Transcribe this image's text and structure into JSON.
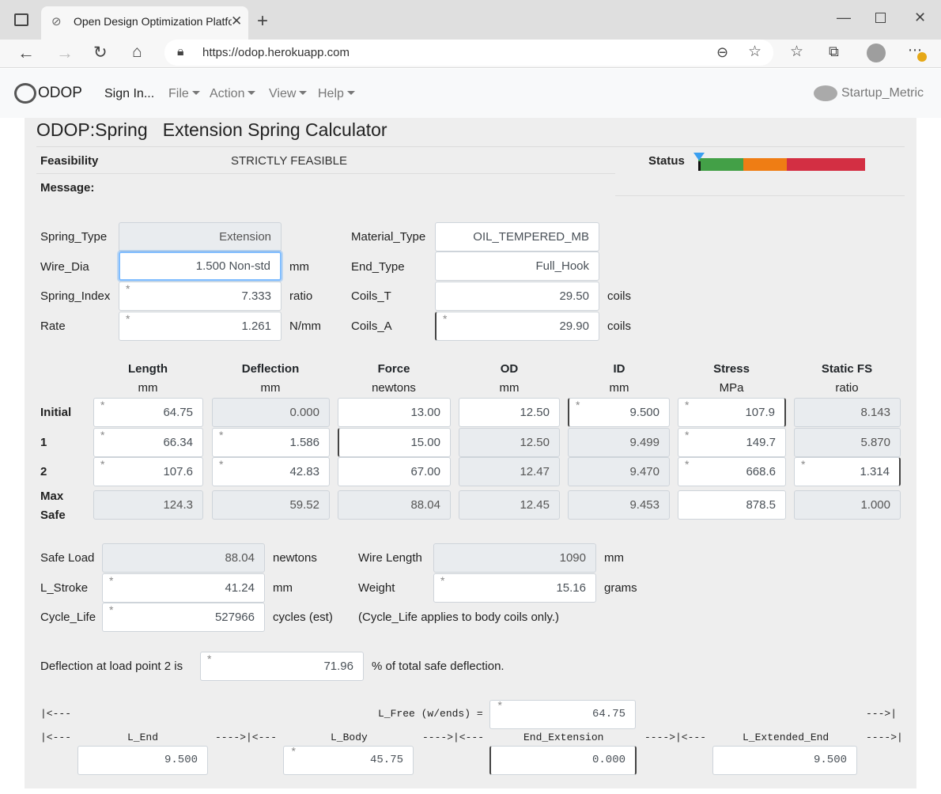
{
  "browser": {
    "tab_title": "Open Design Optimization Platfo",
    "url": "https://odop.herokuapp.com"
  },
  "navbar": {
    "brand": "ODOP",
    "sign_in": "Sign In...",
    "menus": [
      "File",
      "Action",
      "View",
      "Help"
    ],
    "design_name": "Startup_Metric"
  },
  "page": {
    "title": "ODOP:Spring   Extension Spring Calculator",
    "feasibility_label": "Feasibility",
    "feasibility_value": "STRICTLY FEASIBLE",
    "status_label": "Status",
    "message_label": "Message:",
    "status_colors": [
      "#43a047",
      "#ef7d14",
      "#d32f43"
    ]
  },
  "top_fields": {
    "left": [
      {
        "label": "Spring_Type",
        "value": "Extension",
        "unit": ""
      },
      {
        "label": "Wire_Dia",
        "value": "1.500 Non-std",
        "unit": "mm"
      },
      {
        "label": "Spring_Index",
        "value": "7.333",
        "unit": "ratio"
      },
      {
        "label": "Rate",
        "value": "1.261",
        "unit": "N/mm"
      }
    ],
    "right": [
      {
        "label": "Material_Type",
        "value": "OIL_TEMPERED_MB",
        "unit": ""
      },
      {
        "label": "End_Type",
        "value": "Full_Hook",
        "unit": ""
      },
      {
        "label": "Coils_T",
        "value": "29.50",
        "unit": "coils"
      },
      {
        "label": "Coils_A",
        "value": "29.90",
        "unit": "coils"
      }
    ]
  },
  "table": {
    "columns": [
      {
        "name": "Length",
        "unit": "mm"
      },
      {
        "name": "Deflection",
        "unit": "mm"
      },
      {
        "name": "Force",
        "unit": "newtons"
      },
      {
        "name": "OD",
        "unit": "mm"
      },
      {
        "name": "ID",
        "unit": "mm"
      },
      {
        "name": "Stress",
        "unit": "MPa"
      },
      {
        "name": "Static FS",
        "unit": "ratio"
      }
    ],
    "rows": [
      {
        "label": "Initial",
        "values": [
          "64.75",
          "0.000",
          "13.00",
          "12.50",
          "9.500",
          "107.9",
          "8.143"
        ]
      },
      {
        "label": "1",
        "values": [
          "66.34",
          "1.586",
          "15.00",
          "12.50",
          "9.499",
          "149.7",
          "5.870"
        ]
      },
      {
        "label": "2",
        "values": [
          "107.6",
          "42.83",
          "67.00",
          "12.47",
          "9.470",
          "668.6",
          "1.314"
        ]
      },
      {
        "label_line1": "Max",
        "label_line2": "Safe",
        "values": [
          "124.3",
          "59.52",
          "88.04",
          "12.45",
          "9.453",
          "878.5",
          "1.000"
        ]
      }
    ]
  },
  "lower": {
    "safe_load": {
      "label": "Safe Load",
      "value": "88.04",
      "unit": "newtons"
    },
    "l_stroke": {
      "label": "L_Stroke",
      "value": "41.24",
      "unit": "mm"
    },
    "cycle_life": {
      "label": "Cycle_Life",
      "value": "527966",
      "unit": "cycles (est)"
    },
    "wire_length": {
      "label": "Wire Length",
      "value": "1090",
      "unit": "mm"
    },
    "weight": {
      "label": "Weight",
      "value": "15.16",
      "unit": "grams"
    },
    "note": "(Cycle_Life applies to body coils only.)"
  },
  "deflection_pct": {
    "prefix": "Deflection at load point 2 is",
    "value": "71.96",
    "suffix": "% of total safe deflection."
  },
  "dimensions": {
    "arrow_left": "|<---",
    "arrow_right": "--->|",
    "l_free_label": "L_Free  (w/ends) =",
    "l_free_value": "64.75",
    "row2_markers": [
      "|<---",
      "---->|<---",
      "---->|<---",
      "---->|<---",
      "---->|"
    ],
    "l_end_label": "L_End",
    "l_body_label": "L_Body",
    "end_extension_label": "End_Extension",
    "l_extended_end_label": "L_Extended_End",
    "l_end_value": "9.500",
    "l_body_value": "45.75",
    "end_extension_value": "0.000",
    "l_extended_end_value": "9.500"
  },
  "star_marker": "*"
}
